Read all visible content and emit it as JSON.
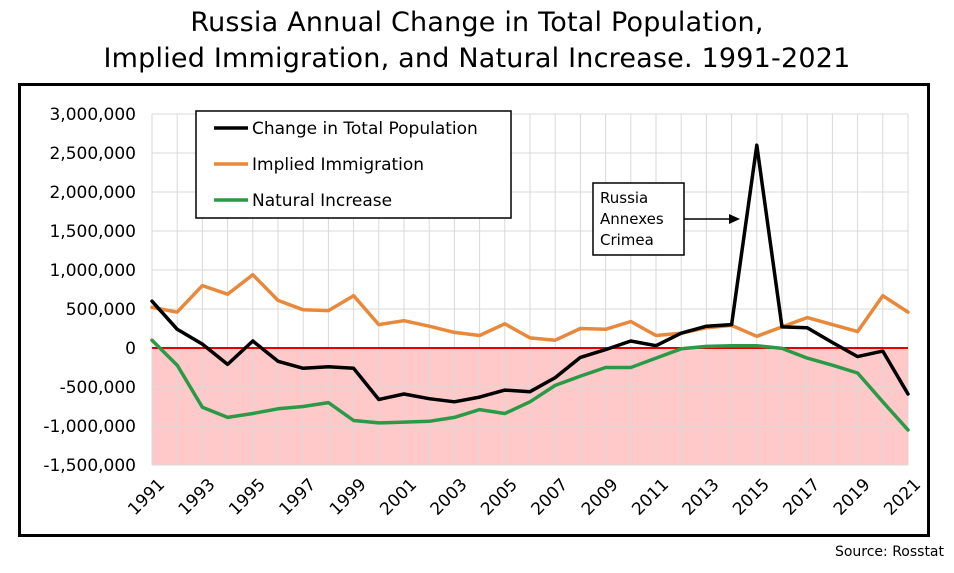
{
  "title_line1": "Russia Annual Change in Total Population,",
  "title_line2": "Implied Immigration, and Natural Increase. 1991-2021",
  "source": "Source: Rosstat",
  "chart_data": {
    "type": "line",
    "x": [
      1991,
      1992,
      1993,
      1994,
      1995,
      1996,
      1997,
      1998,
      1999,
      2000,
      2001,
      2002,
      2003,
      2004,
      2005,
      2006,
      2007,
      2008,
      2009,
      2010,
      2011,
      2012,
      2013,
      2014,
      2015,
      2016,
      2017,
      2018,
      2019,
      2020,
      2021
    ],
    "x_ticks": [
      "1991",
      "1993",
      "1995",
      "1997",
      "1999",
      "2001",
      "2003",
      "2005",
      "2007",
      "2009",
      "2011",
      "2013",
      "2015",
      "2017",
      "2019",
      "2021"
    ],
    "y_ticks": [
      "3,000,000",
      "2,500,000",
      "2,000,000",
      "1,500,000",
      "1,000,000",
      "500,000",
      "0",
      "-500,000",
      "-1,000,000",
      "-1,500,000"
    ],
    "ylim": [
      -1500000,
      3000000
    ],
    "grid": true,
    "legend_position": "top-left",
    "negative_region_color": "#ffc9c9",
    "zero_line_color": "#e00000",
    "series": [
      {
        "name": "Change in Total Population",
        "color": "#000000",
        "values": [
          600000,
          240000,
          50000,
          -210000,
          90000,
          -170000,
          -260000,
          -240000,
          -260000,
          -660000,
          -590000,
          -650000,
          -690000,
          -630000,
          -540000,
          -560000,
          -380000,
          -120000,
          -20000,
          90000,
          30000,
          190000,
          280000,
          300000,
          2600000,
          270000,
          260000,
          70000,
          -110000,
          -40000,
          -590000
        ]
      },
      {
        "name": "Implied Immigration",
        "color": "#e8883a",
        "values": [
          520000,
          460000,
          800000,
          690000,
          940000,
          610000,
          490000,
          480000,
          670000,
          300000,
          350000,
          280000,
          200000,
          160000,
          310000,
          130000,
          100000,
          250000,
          240000,
          340000,
          160000,
          190000,
          260000,
          290000,
          150000,
          270000,
          390000,
          300000,
          210000,
          670000,
          460000
        ]
      },
      {
        "name": "Natural Increase",
        "color": "#2a9a47",
        "values": [
          100000,
          -220000,
          -760000,
          -890000,
          -840000,
          -780000,
          -750000,
          -700000,
          -930000,
          -960000,
          -950000,
          -940000,
          -890000,
          -790000,
          -840000,
          -690000,
          -480000,
          -360000,
          -250000,
          -250000,
          -130000,
          -10000,
          20000,
          30000,
          30000,
          -5000,
          -130000,
          -220000,
          -320000,
          -690000,
          -1050000
        ]
      }
    ],
    "annotation": {
      "lines": [
        "Russia",
        "Annexes",
        "Crimea"
      ],
      "target_x": 2015
    }
  }
}
